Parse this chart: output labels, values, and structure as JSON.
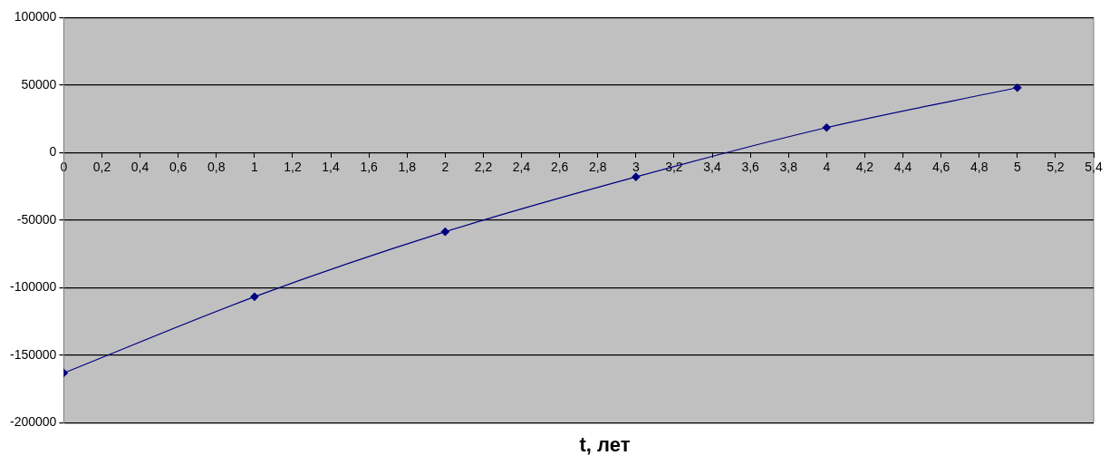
{
  "chart_data": {
    "type": "line",
    "xlabel": "t, лет",
    "x": [
      0,
      1,
      2,
      3,
      4,
      5
    ],
    "series": [
      {
        "color": "#000080",
        "values": [
          -163000,
          -106600,
          -58500,
          -17900,
          18600,
          48100
        ]
      }
    ],
    "xlim": [
      0,
      5.4
    ],
    "xticks": [
      0,
      {
        "value": 0.2,
        "label": "0,2"
      },
      {
        "value": 0.4,
        "label": "0,4"
      },
      {
        "value": 0.6,
        "label": "0,6"
      },
      {
        "value": 0.8,
        "label": "0,8"
      },
      1,
      {
        "value": 1.2,
        "label": "1,2"
      },
      {
        "value": 1.4,
        "label": "1,4"
      },
      {
        "value": 1.6,
        "label": "1,6"
      },
      {
        "value": 1.8,
        "label": "1,8"
      },
      2,
      {
        "value": 2.2,
        "label": "2,2"
      },
      {
        "value": 2.4,
        "label": "2,4"
      },
      {
        "value": 2.6,
        "label": "2,6"
      },
      {
        "value": 2.8,
        "label": "2,8"
      },
      3,
      {
        "value": 3.2,
        "label": "3,2"
      },
      {
        "value": 3.4,
        "label": "3,4"
      },
      {
        "value": 3.6,
        "label": "3,6"
      },
      {
        "value": 3.8,
        "label": "3,8"
      },
      4,
      {
        "value": 4.2,
        "label": "4,2"
      },
      {
        "value": 4.4,
        "label": "4,4"
      },
      {
        "value": 4.6,
        "label": "4,6"
      },
      {
        "value": 4.8,
        "label": "4,8"
      },
      5,
      {
        "value": 5.2,
        "label": "5,2"
      },
      {
        "value": 5.4,
        "label": "5,4"
      }
    ],
    "ylim": [
      -200000,
      100000
    ],
    "yticks": [
      -200000,
      -150000,
      -100000,
      -50000,
      0,
      50000,
      100000
    ],
    "grid": "y",
    "legend": false,
    "marker": "diamond",
    "line_style": "solid"
  }
}
